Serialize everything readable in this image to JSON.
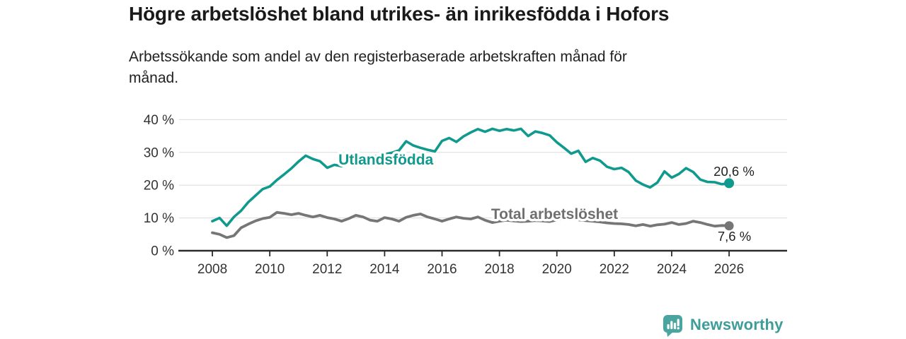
{
  "chart_data": {
    "type": "line",
    "title": "Högre arbetslöshet bland utrikes- än inrikesfödda i Hofors",
    "subtitle_lines": [
      "Arbetssökande som andel av den registerbaserade arbetskraften månad för",
      "månad."
    ],
    "unit": "%",
    "xlabel": "",
    "ylabel": "",
    "ylim": [
      0,
      43.1
    ],
    "xlim": [
      2006.84,
      2028.02
    ],
    "grid": "horizontal",
    "legend_position": "inline",
    "grid_color": "#DBDBDB",
    "axis_color": "#2A2A2A",
    "tick_color": "#333333",
    "yticks": [
      {
        "v": 0,
        "label": "0 %"
      },
      {
        "v": 10,
        "label": "10 %"
      },
      {
        "v": 20,
        "label": "20 %"
      },
      {
        "v": 30,
        "label": "30 %"
      },
      {
        "v": 40,
        "label": "40 %"
      }
    ],
    "xticks": [
      {
        "v": 2008,
        "label": "2008"
      },
      {
        "v": 2010,
        "label": "2010"
      },
      {
        "v": 2012,
        "label": "2012"
      },
      {
        "v": 2014,
        "label": "2014"
      },
      {
        "v": 2016,
        "label": "2016"
      },
      {
        "v": 2018,
        "label": "2018"
      },
      {
        "v": 2020,
        "label": "2020"
      },
      {
        "v": 2022,
        "label": "2022"
      },
      {
        "v": 2024,
        "label": "2024"
      },
      {
        "v": 2026,
        "label": "2026"
      }
    ],
    "series": [
      {
        "id": "utlandsfodda",
        "name": "Utlandsfödda",
        "color": "#109A8D",
        "line_width": 3.6,
        "end_dot": true,
        "dot_radius": 7,
        "end_value_label": "20,6 %",
        "x_start": 2008,
        "x_step": 0.25,
        "values": [
          9.0,
          10.0,
          7.6,
          10.3,
          12.2,
          14.8,
          16.8,
          18.8,
          19.6,
          21.6,
          23.3,
          25.1,
          27.2,
          29.0,
          28.0,
          27.3,
          25.3,
          26.2,
          25.8,
          26.6,
          27.3,
          27.9,
          28.4,
          29.0,
          29.4,
          29.9,
          30.6,
          33.4,
          32.1,
          31.4,
          30.8,
          30.3,
          33.5,
          34.4,
          33.2,
          34.9,
          36.1,
          37.1,
          36.3,
          37.2,
          36.6,
          37.1,
          36.7,
          37.2,
          35.0,
          36.4,
          35.9,
          35.2,
          33.1,
          31.4,
          29.6,
          30.5,
          27.1,
          28.3,
          27.5,
          25.6,
          24.9,
          25.3,
          24.0,
          21.4,
          20.2,
          19.3,
          20.8,
          24.2,
          22.3,
          23.4,
          25.2,
          24.0,
          21.7,
          21.0,
          20.9,
          20.3,
          20.6
        ]
      },
      {
        "id": "total-arbetsloshet",
        "name": "Total arbetslöshet",
        "color": "#767676",
        "line_width": 3.8,
        "end_dot": true,
        "dot_radius": 6.5,
        "end_value_label": "7,6 %",
        "x_start": 2008,
        "x_step": 0.25,
        "values": [
          5.5,
          5.0,
          4.0,
          4.6,
          7.0,
          8.1,
          9.1,
          9.8,
          10.2,
          11.7,
          11.4,
          11.0,
          11.4,
          10.8,
          10.3,
          10.8,
          10.1,
          9.7,
          9.0,
          9.8,
          10.8,
          10.3,
          9.3,
          9.0,
          10.1,
          9.7,
          9.0,
          10.2,
          10.8,
          11.2,
          10.3,
          9.7,
          9.0,
          9.7,
          10.3,
          9.9,
          9.7,
          10.3,
          9.3,
          8.6,
          9.0,
          9.3,
          9.1,
          8.9,
          9.0,
          9.2,
          9.1,
          8.9,
          9.4,
          9.9,
          9.7,
          9.4,
          9.2,
          9.0,
          8.8,
          8.5,
          8.3,
          8.2,
          8.0,
          7.6,
          8.0,
          7.5,
          7.9,
          8.1,
          8.6,
          8.0,
          8.3,
          9.0,
          8.6,
          8.0,
          7.5,
          7.7,
          7.6
        ]
      }
    ],
    "annotations": [
      {
        "id": "series-label-utlandsfodda",
        "text": "Utlandsfödda",
        "t": 2012.39,
        "v": 26.3,
        "color": "#109A8D",
        "bold": true,
        "size": 21
      },
      {
        "id": "series-label-total",
        "text": "Total arbetslöshet",
        "t": 2017.71,
        "v": 9.7,
        "color": "#6F6F6F",
        "bold": true,
        "size": 21
      },
      {
        "id": "end-value-utlandsfodda",
        "text": "20,6 %",
        "t": 2025.46,
        "v": 22.8,
        "color": "#1F1F1F",
        "bold": false,
        "size": 18.5
      },
      {
        "id": "end-value-total",
        "text": "7,6 %",
        "t": 2025.6,
        "v": 3.0,
        "color": "#1F1F1F",
        "bold": false,
        "size": 18.5
      }
    ]
  },
  "footer": {
    "brand": "Newsworthy",
    "logo_color": "#4AA5A1",
    "text_color": "#3C9D99"
  }
}
